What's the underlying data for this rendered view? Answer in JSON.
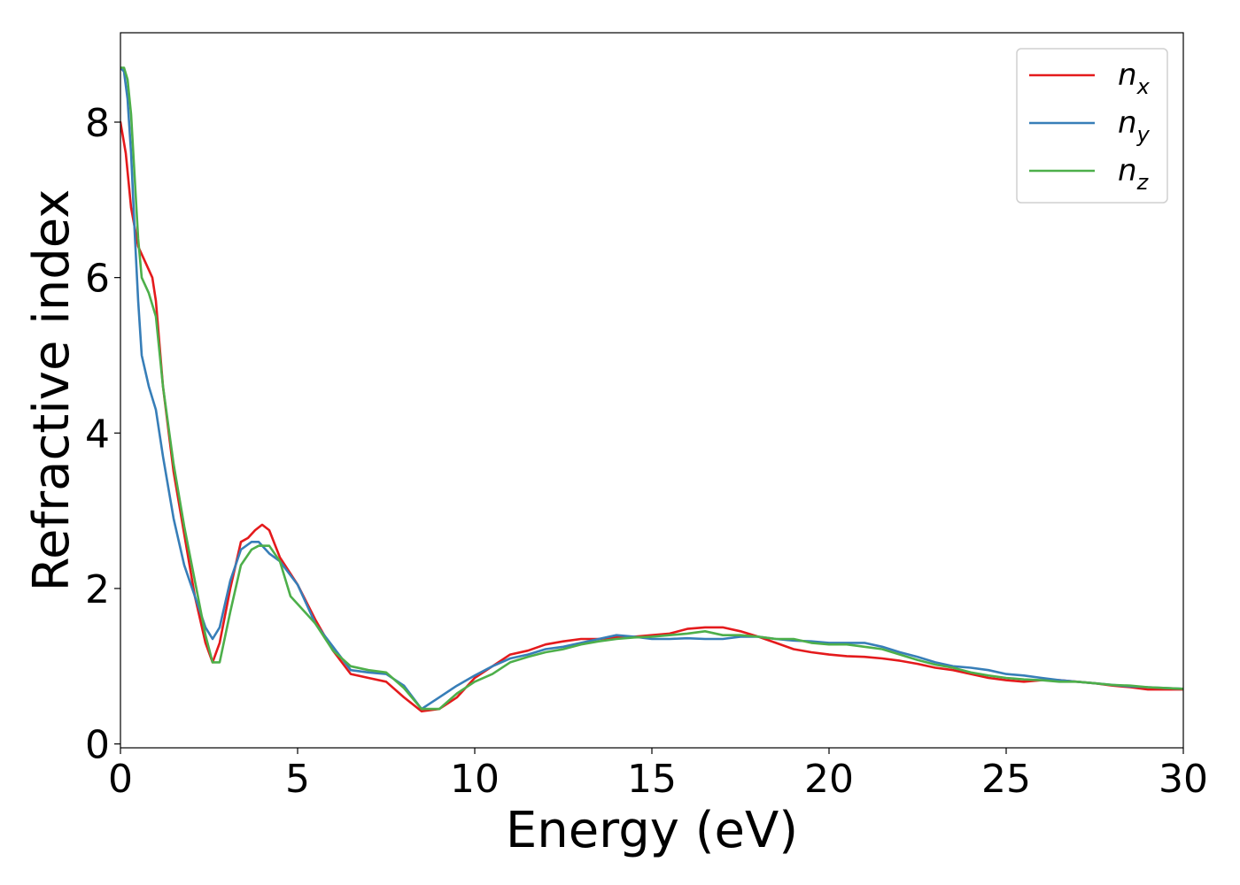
{
  "chart_data": {
    "type": "line",
    "xlabel": "Energy (eV)",
    "ylabel": "Refractive index",
    "xlim": [
      0,
      30
    ],
    "ylim": [
      -0.05,
      9.15
    ],
    "xticks": [
      0,
      5,
      10,
      15,
      20,
      25,
      30
    ],
    "yticks": [
      0,
      2,
      4,
      6,
      8
    ],
    "grid": false,
    "legend_position": "top-right",
    "series": [
      {
        "name": "n_x",
        "legend_base": "n",
        "legend_sub": "x",
        "color": "#e41a1c",
        "x": [
          0,
          0.15,
          0.3,
          0.5,
          0.7,
          0.9,
          1.0,
          1.2,
          1.5,
          1.8,
          2.1,
          2.4,
          2.6,
          2.8,
          3.1,
          3.4,
          3.6,
          3.8,
          4.0,
          4.2,
          4.5,
          5.0,
          5.5,
          6.0,
          6.5,
          7.0,
          7.5,
          8.0,
          8.5,
          9.0,
          9.5,
          10,
          10.5,
          11,
          11.5,
          12,
          12.5,
          13,
          13.5,
          14,
          14.5,
          15,
          15.5,
          16,
          16.5,
          17,
          17.5,
          18,
          18.5,
          19,
          19.5,
          20,
          20.5,
          21,
          21.5,
          22,
          22.5,
          23,
          23.5,
          24,
          24.5,
          25,
          25.5,
          26,
          26.5,
          27,
          27.5,
          28,
          28.5,
          29,
          29.5,
          30
        ],
        "y": [
          8.0,
          7.6,
          6.9,
          6.4,
          6.2,
          6.0,
          5.7,
          4.6,
          3.5,
          2.7,
          1.9,
          1.3,
          1.05,
          1.3,
          2.0,
          2.6,
          2.65,
          2.75,
          2.82,
          2.75,
          2.4,
          2.05,
          1.6,
          1.2,
          0.9,
          0.85,
          0.8,
          0.6,
          0.42,
          0.45,
          0.6,
          0.85,
          1.0,
          1.15,
          1.2,
          1.28,
          1.32,
          1.35,
          1.35,
          1.37,
          1.38,
          1.4,
          1.42,
          1.48,
          1.5,
          1.5,
          1.45,
          1.38,
          1.3,
          1.22,
          1.18,
          1.15,
          1.13,
          1.12,
          1.1,
          1.07,
          1.03,
          0.98,
          0.95,
          0.9,
          0.85,
          0.82,
          0.8,
          0.82,
          0.82,
          0.8,
          0.78,
          0.75,
          0.73,
          0.7,
          0.7,
          0.7
        ]
      },
      {
        "name": "n_y",
        "legend_base": "n",
        "legend_sub": "y",
        "color": "#377eb8",
        "x": [
          0,
          0.1,
          0.2,
          0.3,
          0.4,
          0.5,
          0.6,
          0.8,
          1.0,
          1.2,
          1.5,
          1.8,
          2.1,
          2.4,
          2.6,
          2.8,
          3.1,
          3.4,
          3.7,
          3.9,
          4.2,
          4.5,
          5.0,
          5.5,
          6.0,
          6.5,
          7.0,
          7.5,
          8.0,
          8.5,
          9.0,
          9.5,
          10,
          10.5,
          11,
          11.5,
          12,
          12.5,
          13,
          13.5,
          14,
          14.5,
          15,
          15.5,
          16,
          16.5,
          17,
          17.5,
          18,
          18.5,
          19,
          19.5,
          20,
          20.5,
          21,
          21.5,
          22,
          22.5,
          23,
          23.5,
          24,
          24.5,
          25,
          25.5,
          26,
          26.5,
          27,
          27.5,
          28,
          28.5,
          29,
          29.5,
          30
        ],
        "y": [
          8.7,
          8.65,
          8.3,
          7.6,
          6.6,
          5.7,
          5.0,
          4.6,
          4.3,
          3.7,
          2.9,
          2.3,
          1.9,
          1.5,
          1.35,
          1.5,
          2.1,
          2.5,
          2.6,
          2.6,
          2.45,
          2.35,
          2.05,
          1.55,
          1.25,
          0.95,
          0.92,
          0.9,
          0.75,
          0.45,
          0.6,
          0.75,
          0.88,
          1.0,
          1.1,
          1.15,
          1.22,
          1.25,
          1.3,
          1.35,
          1.4,
          1.38,
          1.35,
          1.35,
          1.36,
          1.35,
          1.35,
          1.38,
          1.38,
          1.35,
          1.33,
          1.32,
          1.3,
          1.3,
          1.3,
          1.25,
          1.18,
          1.12,
          1.05,
          1.0,
          0.98,
          0.95,
          0.9,
          0.88,
          0.85,
          0.82,
          0.8,
          0.78,
          0.76,
          0.74,
          0.73,
          0.72,
          0.71
        ]
      },
      {
        "name": "n_z",
        "legend_base": "n",
        "legend_sub": "z",
        "color": "#4daf4a",
        "x": [
          0,
          0.1,
          0.2,
          0.3,
          0.4,
          0.5,
          0.6,
          0.8,
          1.0,
          1.2,
          1.5,
          1.8,
          2.1,
          2.4,
          2.6,
          2.8,
          3.1,
          3.4,
          3.7,
          3.9,
          4.2,
          4.5,
          4.8,
          5.0,
          5.5,
          6.0,
          6.5,
          7.0,
          7.5,
          8.0,
          8.5,
          9.0,
          9.5,
          10,
          10.5,
          11,
          11.5,
          12,
          12.5,
          13,
          13.5,
          14,
          14.5,
          15,
          15.5,
          16,
          16.5,
          17,
          17.5,
          18,
          18.5,
          19,
          19.5,
          20,
          20.5,
          21,
          21.5,
          22,
          22.5,
          23,
          23.5,
          24,
          24.5,
          25,
          25.5,
          26,
          26.5,
          27,
          27.5,
          28,
          28.5,
          29,
          29.5,
          30
        ],
        "y": [
          8.7,
          8.7,
          8.55,
          8.1,
          7.3,
          6.5,
          6.0,
          5.8,
          5.5,
          4.6,
          3.6,
          2.8,
          2.1,
          1.4,
          1.05,
          1.05,
          1.7,
          2.3,
          2.5,
          2.55,
          2.55,
          2.35,
          1.9,
          1.8,
          1.55,
          1.2,
          1.0,
          0.95,
          0.92,
          0.72,
          0.45,
          0.45,
          0.65,
          0.8,
          0.9,
          1.05,
          1.12,
          1.18,
          1.22,
          1.28,
          1.32,
          1.35,
          1.37,
          1.38,
          1.4,
          1.42,
          1.45,
          1.4,
          1.4,
          1.38,
          1.35,
          1.35,
          1.3,
          1.28,
          1.28,
          1.25,
          1.22,
          1.15,
          1.08,
          1.02,
          0.98,
          0.92,
          0.88,
          0.85,
          0.83,
          0.82,
          0.8,
          0.8,
          0.78,
          0.76,
          0.75,
          0.73,
          0.72,
          0.71
        ]
      }
    ]
  }
}
